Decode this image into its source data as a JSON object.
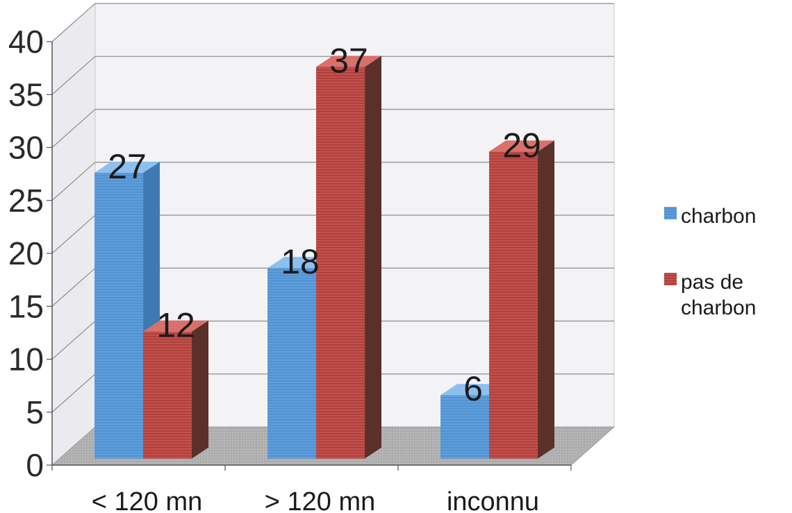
{
  "chart_data": {
    "type": "bar",
    "categories": [
      "< 120 mn",
      "> 120 mn",
      "inconnu"
    ],
    "series": [
      {
        "name": "charbon",
        "values": [
          27,
          18,
          6
        ],
        "color": "#5b9bd8"
      },
      {
        "name": "pas de charbon",
        "values": [
          12,
          37,
          29
        ],
        "color": "#c0504d"
      }
    ],
    "title": "",
    "xlabel": "",
    "ylabel": "",
    "ylim": [
      0,
      40
    ],
    "yticks": [
      0,
      5,
      10,
      15,
      20,
      25,
      30,
      35,
      40
    ],
    "grid": true,
    "legend_position": "right",
    "style": "3d-clustered-column"
  },
  "legend": {
    "items": [
      {
        "lines": [
          "charbon"
        ]
      },
      {
        "lines": [
          "pas de",
          "charbon"
        ]
      }
    ]
  }
}
